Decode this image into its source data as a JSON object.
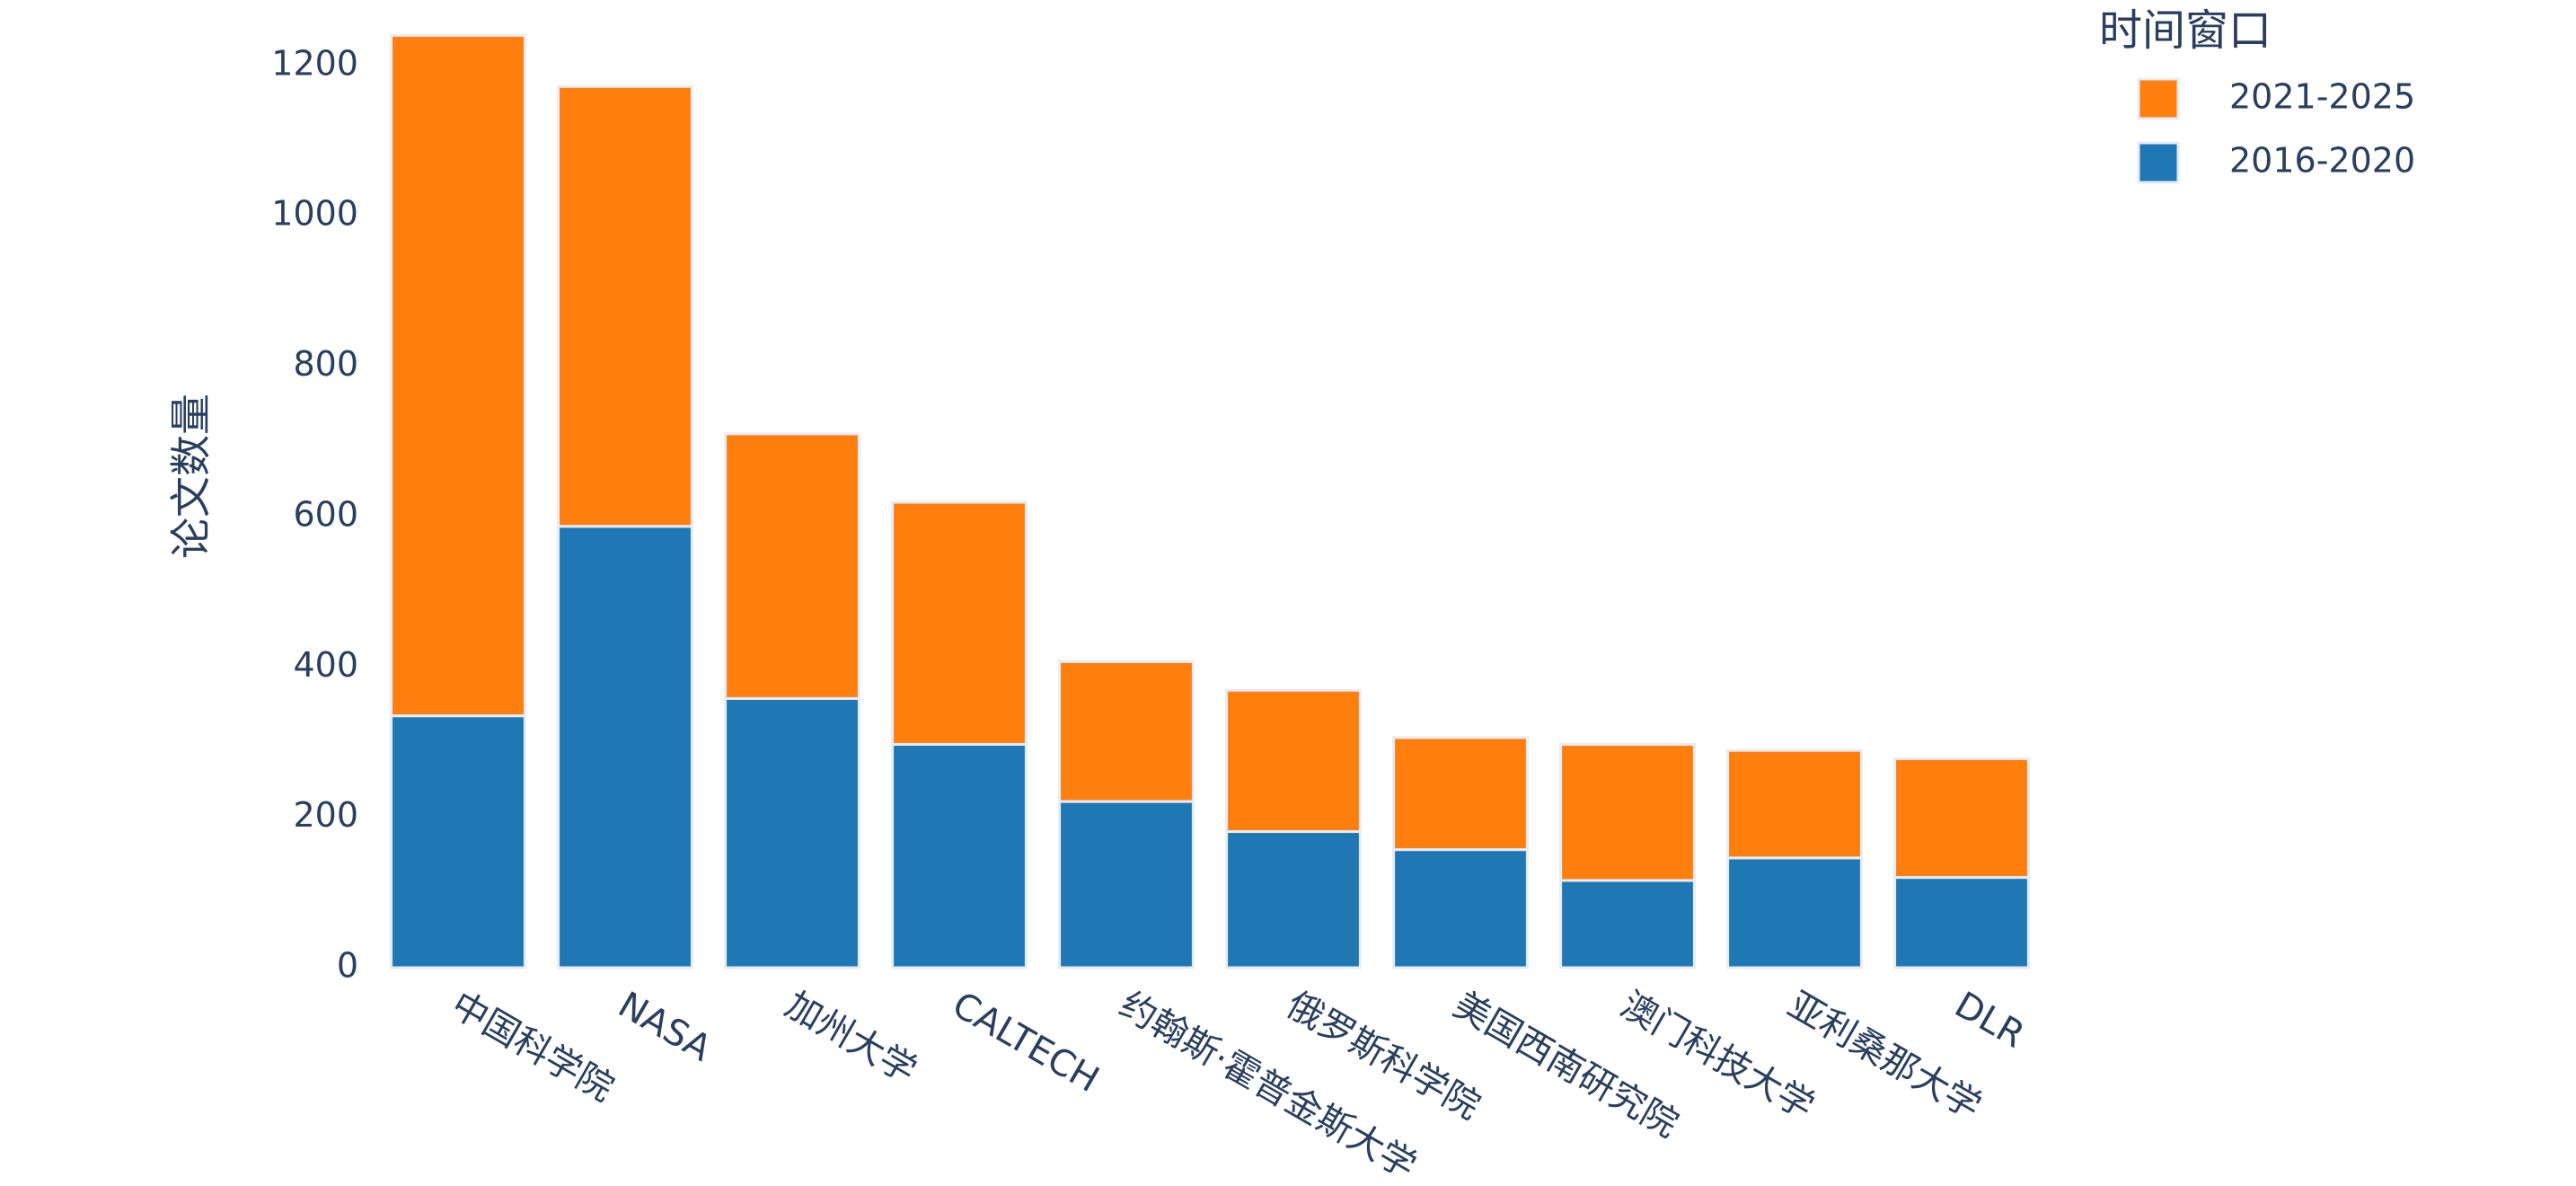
{
  "chart_data": {
    "type": "stacked_bar",
    "y_label": "论文数量",
    "legend_title": "时间窗口",
    "categories": [
      "中国科学院",
      "NASA",
      "加州大学",
      "CALTECH",
      "约翰斯·霍普金斯大学",
      "俄罗斯科学院",
      "美国西南研究院",
      "澳门科技大学",
      "亚利桑那大学",
      "DLR"
    ],
    "series": [
      {
        "name": "2016-2020",
        "color": "#1f77b4",
        "values": [
          335,
          587,
          358,
          297,
          221,
          181,
          157,
          116,
          146,
          120
        ]
      },
      {
        "name": "2021-2025",
        "color": "#ff7f0e",
        "values": [
          905,
          585,
          352,
          322,
          186,
          188,
          149,
          181,
          143,
          158
        ]
      }
    ],
    "ylim": [
      0,
      1250
    ],
    "yticks": [
      0,
      200,
      400,
      600,
      800,
      1000,
      1200
    ]
  }
}
